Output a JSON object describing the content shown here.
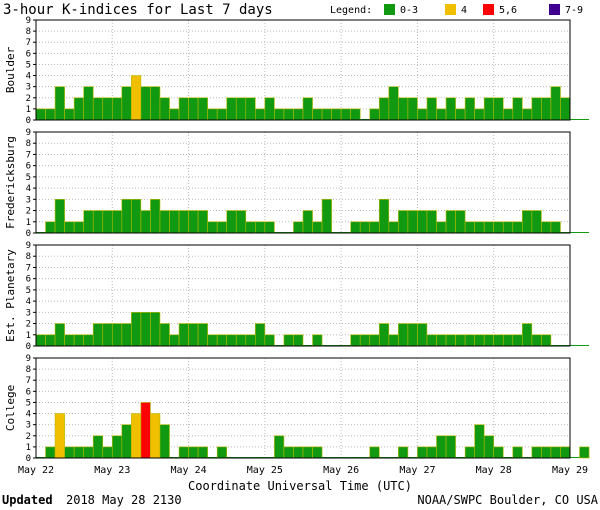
{
  "header": {
    "title": "3-hour K-indices for Last 7 days",
    "legend_label": "Legend:",
    "legend": [
      {
        "label": "0-3",
        "color": "#119911"
      },
      {
        "label": "4",
        "color": "#f0c000"
      },
      {
        "label": "5,6",
        "color": "#ff0000"
      },
      {
        "label": "7-9",
        "color": "#400090"
      }
    ]
  },
  "footer": {
    "updated_label": "Updated",
    "updated_value": "2018 May 28 2130",
    "source": "NOAA/SWPC Boulder, CO USA"
  },
  "colors": {
    "k_0_3": "#119911",
    "k_4": "#f0c000",
    "k_5_6": "#ff0000",
    "k_7_9": "#400090",
    "bar_edge": "#b8b800",
    "grid": "#bbbbbb"
  },
  "chart_data": {
    "type": "bar",
    "title": "3-hour K-indices for Last 7 days",
    "xlabel": "Coordinate Universal Time (UTC)",
    "x_ticks": [
      "May 22",
      "May 23",
      "May 24",
      "May 25",
      "May 26",
      "May 27",
      "May 28",
      "May 29"
    ],
    "y_ticks": [
      "0",
      "1",
      "2",
      "3",
      "4",
      "5",
      "6",
      "7",
      "8",
      "9"
    ],
    "ylim": [
      0,
      9
    ],
    "grid": true,
    "panels": [
      {
        "ylabel": "Boulder",
        "values": [
          1,
          1,
          3,
          1,
          2,
          3,
          2,
          2,
          2,
          3,
          4,
          3,
          3,
          2,
          1,
          2,
          2,
          2,
          1,
          1,
          2,
          2,
          2,
          1,
          2,
          1,
          1,
          1,
          2,
          1,
          1,
          1,
          1,
          1,
          0,
          1,
          2,
          3,
          2,
          2,
          1,
          2,
          1,
          2,
          1,
          2,
          1,
          2,
          2,
          1,
          2,
          1,
          2,
          2,
          3,
          2,
          0,
          0
        ]
      },
      {
        "ylabel": "Fredericksburg",
        "values": [
          0,
          1,
          3,
          1,
          1,
          2,
          2,
          2,
          2,
          3,
          3,
          2,
          3,
          2,
          2,
          2,
          2,
          2,
          1,
          1,
          2,
          2,
          1,
          1,
          1,
          0,
          0,
          1,
          2,
          1,
          3,
          0,
          0,
          1,
          1,
          1,
          3,
          1,
          2,
          2,
          2,
          2,
          1,
          2,
          2,
          1,
          1,
          1,
          1,
          1,
          1,
          2,
          2,
          1,
          1,
          0,
          0,
          0
        ]
      },
      {
        "ylabel": "Est. Planetary",
        "values": [
          1,
          1,
          2,
          1,
          1,
          1,
          2,
          2,
          2,
          2,
          3,
          3,
          3,
          2,
          1,
          2,
          2,
          2,
          1,
          1,
          1,
          1,
          1,
          2,
          1,
          0,
          1,
          1,
          0,
          1,
          0,
          0,
          0,
          1,
          1,
          1,
          2,
          1,
          2,
          2,
          2,
          1,
          1,
          1,
          1,
          1,
          1,
          1,
          1,
          1,
          1,
          2,
          1,
          1,
          0,
          0,
          0,
          0
        ]
      },
      {
        "ylabel": "College",
        "values": [
          0,
          1,
          4,
          1,
          1,
          1,
          2,
          1,
          2,
          3,
          4,
          5,
          4,
          3,
          0,
          1,
          1,
          1,
          0,
          1,
          0,
          0,
          0,
          0,
          0,
          2,
          1,
          1,
          1,
          1,
          0,
          0,
          0,
          0,
          0,
          1,
          0,
          0,
          1,
          0,
          1,
          1,
          2,
          2,
          0,
          1,
          3,
          2,
          1,
          0,
          1,
          0,
          1,
          1,
          1,
          1,
          0,
          1
        ]
      }
    ]
  }
}
